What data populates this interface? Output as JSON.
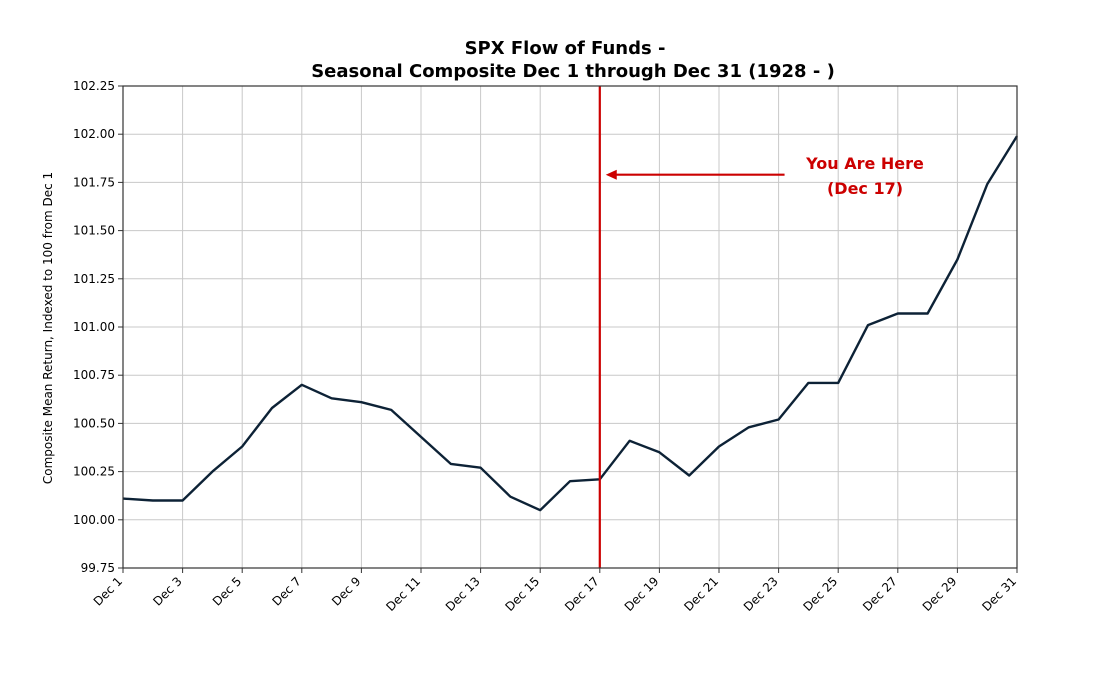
{
  "chart_data": {
    "type": "line",
    "title_line1": "SPX Flow of Funds -",
    "title_line2": "Seasonal Composite Dec 1 through Dec 31 (1928 - )",
    "xlabel": "",
    "ylabel": "Composite Mean Return, Indexed to 100 from Dec 1",
    "ylim": [
      99.75,
      102.25
    ],
    "yticks": [
      "99.75",
      "100.00",
      "100.25",
      "100.50",
      "100.75",
      "101.00",
      "101.25",
      "101.50",
      "101.75",
      "102.00",
      "102.25"
    ],
    "ytick_values": [
      99.75,
      100.0,
      100.25,
      100.5,
      100.75,
      101.0,
      101.25,
      101.5,
      101.75,
      102.0,
      102.25
    ],
    "xlim": [
      1,
      31
    ],
    "xticks": [
      "Dec 1",
      "Dec 3",
      "Dec 5",
      "Dec 7",
      "Dec 9",
      "Dec 11",
      "Dec 13",
      "Dec 15",
      "Dec 17",
      "Dec 19",
      "Dec 21",
      "Dec 23",
      "Dec 25",
      "Dec 27",
      "Dec 29",
      "Dec 31"
    ],
    "xtick_values": [
      1,
      3,
      5,
      7,
      9,
      11,
      13,
      15,
      17,
      19,
      21,
      23,
      25,
      27,
      29,
      31
    ],
    "grid": true,
    "line_color": "#0d2236",
    "marker_color": "#cc0000",
    "series": [
      {
        "x": [
          1,
          2,
          3,
          4,
          5,
          6,
          7,
          8,
          9,
          10,
          11,
          12,
          13,
          14,
          15,
          16,
          17,
          18,
          19,
          20,
          21,
          22,
          23,
          24,
          25,
          26,
          27,
          28,
          29,
          30,
          31
        ],
        "values": [
          100.11,
          100.1,
          100.1,
          100.25,
          100.38,
          100.58,
          100.7,
          100.63,
          100.61,
          100.57,
          100.43,
          100.29,
          100.27,
          100.12,
          100.05,
          100.2,
          100.21,
          100.41,
          100.35,
          100.23,
          100.38,
          100.48,
          100.52,
          100.71,
          100.71,
          101.01,
          101.07,
          101.07,
          101.35,
          101.74,
          101.99
        ]
      }
    ],
    "vline": {
      "x": 17
    },
    "annotation": {
      "line1": "You Are Here",
      "line2": "(Dec 17)",
      "arrow_from": [
        23.2,
        101.79
      ],
      "arrow_to": [
        17.2,
        101.79
      ],
      "text_x": 25.9,
      "text_y1": 101.82,
      "text_y2": 101.69
    }
  }
}
